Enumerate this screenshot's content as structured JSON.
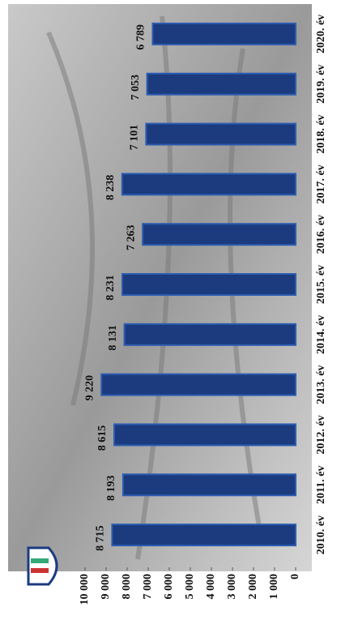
{
  "chart_data": {
    "type": "bar",
    "categories": [
      "2010. év",
      "2011. év",
      "2012. év",
      "2013. év",
      "2014. év",
      "2015. év",
      "2016. év",
      "2017. év",
      "2018. év",
      "2019. év",
      "2020. év"
    ],
    "values": [
      8715,
      8193,
      8615,
      9220,
      8131,
      8231,
      7263,
      8238,
      7101,
      7053,
      6789
    ],
    "value_labels": [
      "8 715",
      "8 193",
      "8 615",
      "9 220",
      "8 131",
      "8 231",
      "7 263",
      "8 238",
      "7 101",
      "7 053",
      "6 789"
    ],
    "color": "#1b3b7e",
    "ylim": [
      0,
      10000
    ],
    "yticks": [
      0,
      {
        "value": 1000,
        "label": "1 000"
      },
      {
        "value": 2000,
        "label": "2 000"
      },
      {
        "value": 3000,
        "label": "3 000"
      },
      {
        "value": 4000,
        "label": "4 000"
      },
      {
        "value": 5000,
        "label": "5 000"
      },
      {
        "value": 6000,
        "label": "6 000"
      },
      {
        "value": 7000,
        "label": "7 000"
      },
      {
        "value": 8000,
        "label": "8 000"
      },
      {
        "value": 9000,
        "label": "9 000"
      },
      {
        "value": 10000,
        "label": "10 000"
      }
    ],
    "grid": false
  }
}
